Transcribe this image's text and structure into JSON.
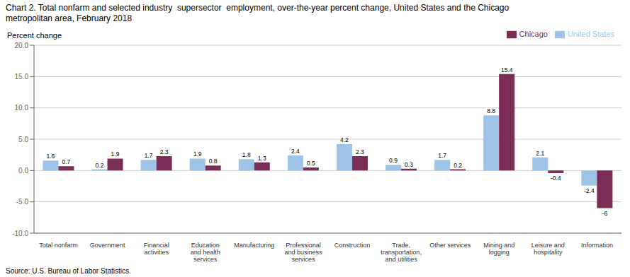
{
  "chart_data": {
    "type": "bar",
    "title": "Chart 2. Total nonfarm and selected industry  supersector  employment, over-the-year percent change, United States and the Chicago\nmetropolitan area, February 2018",
    "y_label": "Percent change",
    "source": "Source: U.S. Bureau of Labor Statistics.",
    "categories": [
      "Total nonfarm",
      "Government",
      "Financial\nactivities",
      "Education\nand health\nservices",
      "Manufacturing",
      "Professional\nand business\nservices",
      "Construction",
      "Trade,\ntransportation,\nand utilities",
      "Other services",
      "Mining and\nlogging",
      "Leisure and\nhospitality",
      "Information"
    ],
    "series": [
      {
        "name": "United States",
        "color": "#9DC3E6",
        "values": [
          1.6,
          0.2,
          1.7,
          1.9,
          1.8,
          2.4,
          4.2,
          0.9,
          1.7,
          8.8,
          2.1,
          -2.4
        ]
      },
      {
        "name": "Chicago",
        "color": "#7B2D55",
        "values": [
          0.7,
          1.9,
          2.3,
          0.8,
          1.3,
          0.5,
          2.3,
          0.3,
          0.2,
          15.4,
          -0.4,
          -6.0
        ]
      }
    ],
    "ylim": [
      -10.0,
      20.0
    ],
    "yticks": [
      {
        "value": -10,
        "label": "-10.0"
      },
      {
        "value": -5,
        "label": "-5.0"
      },
      {
        "value": 0,
        "label": "0.0"
      },
      {
        "value": 5,
        "label": "5.0"
      },
      {
        "value": 10,
        "label": "10.0"
      },
      {
        "value": 15,
        "label": "15.0"
      },
      {
        "value": 20,
        "label": "20.0"
      }
    ],
    "grid": true,
    "legend": "upper right",
    "data_labels": true
  }
}
